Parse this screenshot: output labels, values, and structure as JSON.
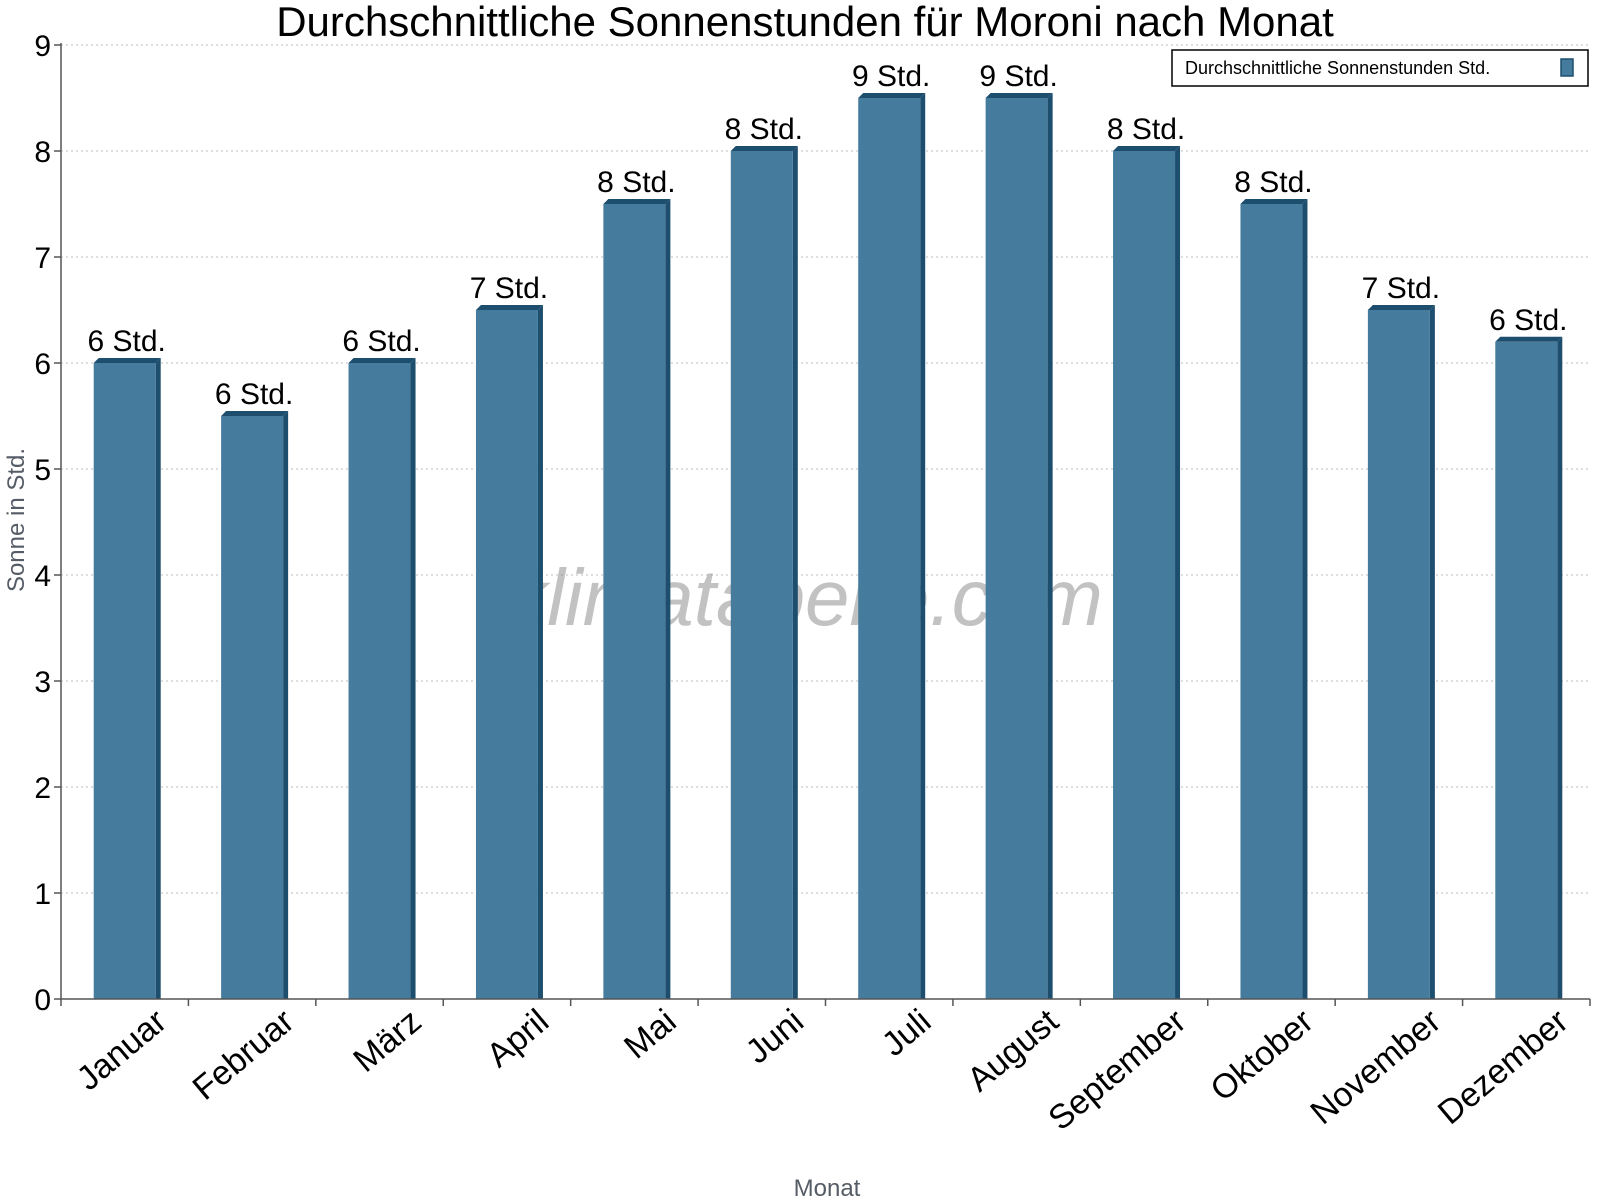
{
  "chart_data": {
    "type": "bar",
    "title": "Durchschnittliche Sonnenstunden für Moroni nach Monat",
    "xlabel": "Monat",
    "ylabel": "Sonne in Std.",
    "ylim": [
      0,
      9
    ],
    "yticks": [
      "0",
      "1",
      "2",
      "3",
      "4",
      "5",
      "6",
      "7",
      "8",
      "9"
    ],
    "grid": true,
    "legend_position": "top-right",
    "categories": [
      "Januar",
      "Februar",
      "März",
      "April",
      "Mai",
      "Juni",
      "Juli",
      "August",
      "September",
      "Oktober",
      "November",
      "Dezember"
    ],
    "series": [
      {
        "name": "Durchschnittliche Sonnenstunden Std.",
        "values": [
          6.0,
          5.5,
          6.0,
          6.5,
          7.5,
          8.0,
          8.5,
          8.5,
          8.0,
          7.5,
          6.5,
          6.2
        ],
        "labels": [
          "6 Std.",
          "6 Std.",
          "6 Std.",
          "7 Std.",
          "8 Std.",
          "8 Std.",
          "9 Std.",
          "9 Std.",
          "8 Std.",
          "8 Std.",
          "7 Std.",
          "6 Std."
        ],
        "color": "#457b9d",
        "edge_color": "#1d4e6e"
      }
    ]
  },
  "watermark": "klimatabelle.com"
}
